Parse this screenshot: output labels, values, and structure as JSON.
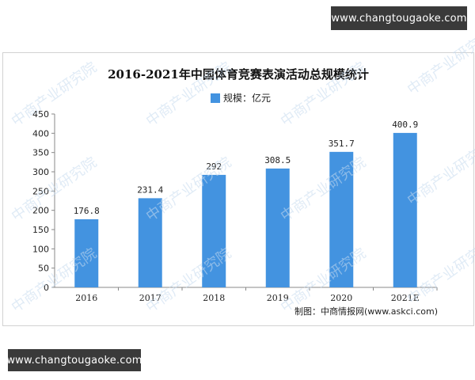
{
  "banners": {
    "top": "www.changtougaoke.com",
    "bottom": "www.changtougaoke.com"
  },
  "source": "制图：中商情报网(www.askci.com)",
  "watermark_text": "中商产业研究院",
  "colors": {
    "bar": "#4393e0",
    "banner_bg": "#3a3a3a",
    "watermark": "#c7dbef"
  },
  "chart_data": {
    "type": "bar",
    "title": "2016-2021年中国体育竞赛表演活动总规模统计",
    "categories": [
      "2016",
      "2017",
      "2018",
      "2019",
      "2020",
      "2021E"
    ],
    "series": [
      {
        "name": "规模：亿元",
        "values": [
          176.8,
          231.4,
          292,
          308.5,
          351.7,
          400.9
        ],
        "labels": [
          "176.8",
          "231.4",
          "292",
          "308.5",
          "351.7",
          "400.9"
        ]
      }
    ],
    "ylim": [
      0,
      450
    ],
    "yticks": [
      0,
      50,
      100,
      150,
      200,
      250,
      300,
      350,
      400,
      450
    ],
    "xlabel": "",
    "ylabel": "",
    "grid": false,
    "legend": "top-center"
  }
}
